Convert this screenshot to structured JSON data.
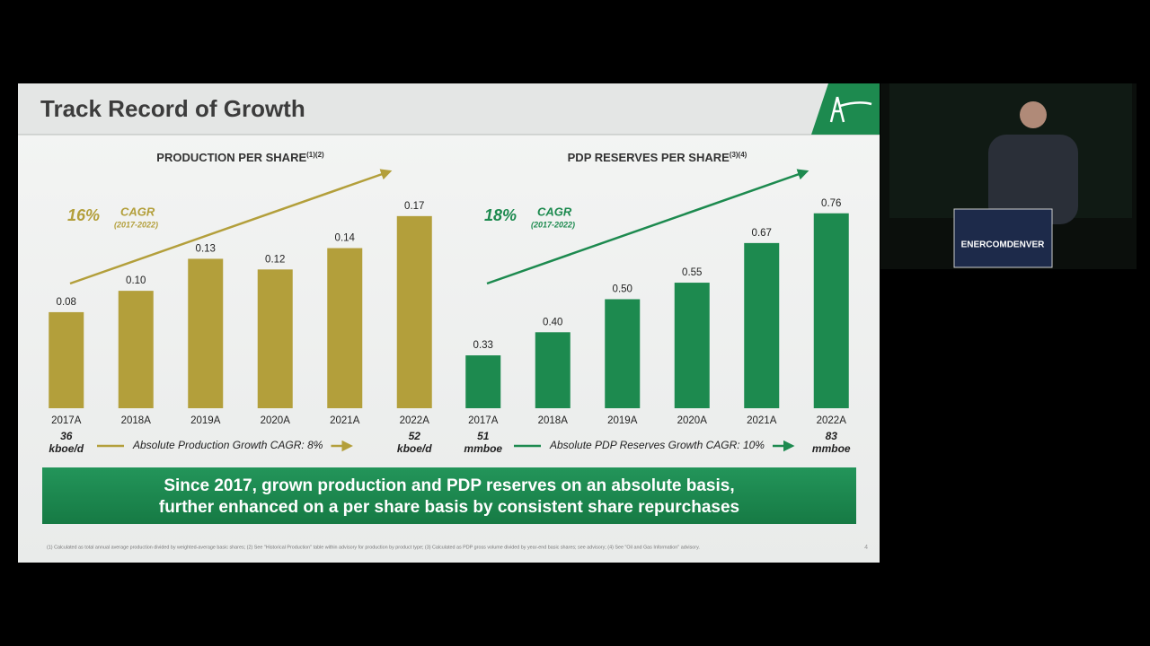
{
  "slide": {
    "title": "Track Record of Growth",
    "banner": [
      "Since 2017, grown production and PDP reserves on an absolute basis,",
      "further enhanced on a per share basis by consistent share repurchases"
    ],
    "footnote": "(1) Calculated as total annual average production divided by weighted-average basic shares; (2) See \"Historical Production\" table within advisory for production by product type; (3) Calculated as PDP gross volume divided by year-end basic shares; see advisory; (4) See \"Oil and Gas Information\" advisory.",
    "page": "4",
    "event": "ENERCOMDENVER"
  },
  "chart_data": [
    {
      "type": "bar",
      "title": "PRODUCTION PER SHARE",
      "superscript": "(1)(2)",
      "color": "#b39f3b",
      "categories": [
        "2017A",
        "2018A",
        "2019A",
        "2020A",
        "2021A",
        "2022A"
      ],
      "values": [
        0.08,
        0.1,
        0.13,
        0.12,
        0.14,
        0.17
      ],
      "value_labels": [
        "0.08",
        "0.10",
        "0.13",
        "0.12",
        "0.14",
        "0.17"
      ],
      "ylim": [
        -0.01,
        0.185
      ],
      "cagr": {
        "value": "16%",
        "label": "CAGR",
        "period": "(2017-2022)"
      },
      "start_note": [
        "36",
        "kboe/d"
      ],
      "growth_note": "Absolute Production Growth CAGR: 8%",
      "end_note": [
        "52",
        "kboe/d"
      ]
    },
    {
      "type": "bar",
      "title": "PDP RESERVES PER SHARE",
      "superscript": "(3)(4)",
      "color": "#1d8a4f",
      "categories": [
        "2017A",
        "2018A",
        "2019A",
        "2020A",
        "2021A",
        "2022A"
      ],
      "values": [
        0.33,
        0.4,
        0.5,
        0.55,
        0.67,
        0.76
      ],
      "value_labels": [
        "0.33",
        "0.40",
        "0.50",
        "0.55",
        "0.67",
        "0.76"
      ],
      "ylim": [
        0.17,
        0.8
      ],
      "cagr": {
        "value": "18%",
        "label": "CAGR",
        "period": "(2017-2022)"
      },
      "start_note": [
        "51",
        "mmboe"
      ],
      "growth_note": "Absolute PDP Reserves Growth CAGR: 10%",
      "end_note": [
        "83",
        "mmboe"
      ]
    }
  ]
}
